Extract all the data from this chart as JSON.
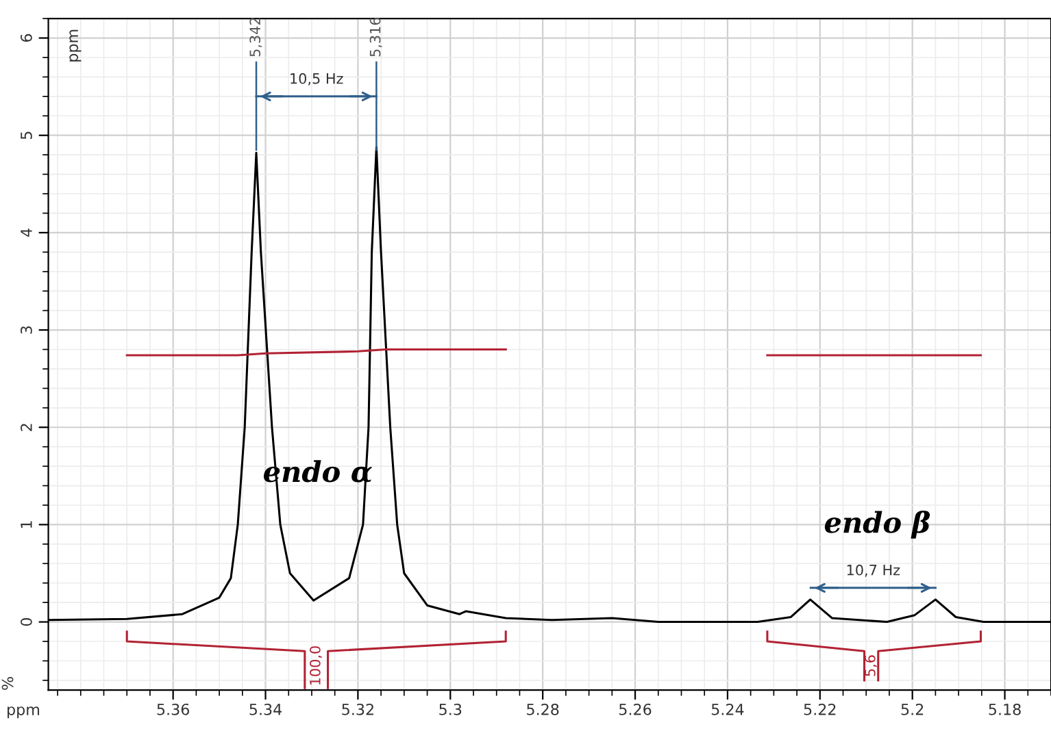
{
  "chart_data": {
    "type": "line",
    "xlabel": "ppm",
    "ylabel": "%",
    "xlim": [
      5.387,
      5.17
    ],
    "ylim": [
      -0.7,
      6.2
    ],
    "xticks": [
      5.36,
      5.34,
      5.32,
      5.3,
      5.28,
      5.26,
      5.24,
      5.22,
      5.2,
      5.18
    ],
    "yticks": [
      0,
      1,
      2,
      3,
      4,
      5,
      6
    ],
    "grid": true,
    "marker": "none",
    "line_style": "solid",
    "series": [
      {
        "color": "#000000",
        "x": [
          5.387,
          5.37,
          5.358,
          5.35,
          5.3475,
          5.346,
          5.3445,
          5.343,
          5.342,
          5.341,
          5.3386,
          5.3368,
          5.3347,
          5.3296,
          5.3219,
          5.3189,
          5.3177,
          5.317,
          5.316,
          5.315,
          5.313,
          5.3115,
          5.31,
          5.305,
          5.298,
          5.2966,
          5.288,
          5.278,
          5.265,
          5.255,
          5.2335,
          5.2263,
          5.2221,
          5.2174,
          5.2055,
          5.1995,
          5.195,
          5.1906,
          5.1846,
          5.17
        ],
        "values": [
          0.02,
          0.03,
          0.08,
          0.25,
          0.45,
          1.0,
          2.0,
          3.8,
          4.82,
          3.8,
          2.0,
          1.0,
          0.5,
          0.22,
          0.45,
          1.0,
          2.0,
          3.8,
          4.88,
          3.8,
          2.0,
          1.0,
          0.5,
          0.17,
          0.08,
          0.11,
          0.04,
          0.02,
          0.04,
          0.0,
          0.0,
          0.05,
          0.23,
          0.04,
          0.0,
          0.07,
          0.23,
          0.05,
          0.0,
          0.0
        ]
      },
      {
        "color": "#b22234",
        "x": [
          5.37,
          5.346,
          5.34,
          5.32,
          5.314,
          5.288
        ],
        "values": [
          2.74,
          2.74,
          2.76,
          2.78,
          2.8,
          2.8
        ]
      },
      {
        "color": "#b22234",
        "x": [
          5.2314,
          5.1852
        ],
        "values": [
          2.74,
          2.74
        ]
      },
      {
        "color": "#2f5f8a",
        "x": [
          5.342,
          5.316
        ],
        "values": [
          5.4,
          5.4
        ]
      },
      {
        "color": "#2f5f8a",
        "x": [
          5.222,
          5.195
        ],
        "values": [
          0.35,
          0.35
        ]
      },
      {
        "color": "#b22234",
        "x": [
          5.37,
          5.37,
          5.3315,
          5.3315,
          5.33,
          5.3265,
          5.3265,
          5.288,
          5.288
        ],
        "values": [
          -0.1,
          -0.2,
          -0.3,
          -0.68,
          null,
          -0.68,
          -0.3,
          -0.2,
          -0.1
        ]
      },
      {
        "color": "#b22234",
        "x": [
          5.2314,
          5.2314,
          5.2104,
          5.2104,
          5.209,
          5.2074,
          5.2074,
          5.1852,
          5.1852
        ],
        "values": [
          -0.1,
          -0.2,
          -0.3,
          -0.6,
          null,
          -0.6,
          -0.3,
          -0.2,
          -0.1
        ]
      }
    ],
    "ref_lines": [
      {
        "axis": "x",
        "value": 5.342,
        "label": "5,342",
        "color": "#2f5f8a"
      },
      {
        "axis": "x",
        "value": 5.316,
        "label": "5,316",
        "color": "#2f5f8a"
      }
    ],
    "annotations": [
      "10,5 Hz",
      "10,7 Hz",
      "endo α",
      "endo β",
      "100,0",
      "5,6",
      "ppm"
    ]
  }
}
